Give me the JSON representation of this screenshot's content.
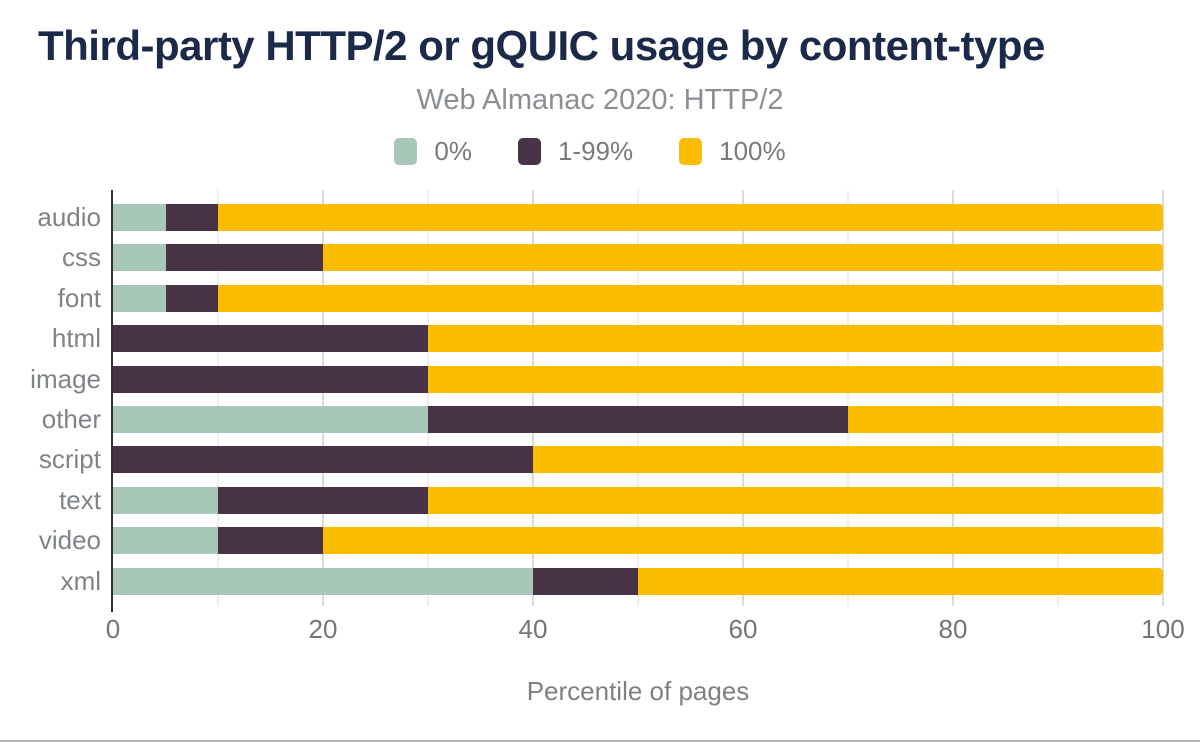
{
  "header": {
    "title": "Third-party HTTP/2 or gQUIC usage by content-type",
    "subtitle": "Web Almanac 2020: HTTP/2"
  },
  "colors": {
    "title_text": "#1b2a49",
    "subtitle_text": "#8a8f94",
    "axis_line": "#362a38",
    "gridline_major": "#dadada",
    "gridline_minor": "#efefef",
    "label_text": "#7a7a7a",
    "series_0pct": "#a7c8b8",
    "series_1_99pct": "#483245",
    "series_100pct": "#fcbd00"
  },
  "legend": {
    "items": [
      {
        "label": "0%",
        "color": "#a7c8b8"
      },
      {
        "label": "1-99%",
        "color": "#483245"
      },
      {
        "label": "100%",
        "color": "#fcbd00"
      }
    ],
    "position": "top"
  },
  "chart_data": {
    "type": "bar",
    "stacked": true,
    "orientation": "horizontal",
    "title": "Third-party HTTP/2 or gQUIC usage by content-type",
    "subtitle": "Web Almanac 2020: HTTP/2",
    "categories": [
      "audio",
      "css",
      "font",
      "html",
      "image",
      "other",
      "script",
      "text",
      "video",
      "xml"
    ],
    "series": [
      {
        "name": "0%",
        "color": "#a7c8b8",
        "values": [
          5,
          5,
          5,
          0,
          0,
          30,
          0,
          10,
          10,
          40
        ]
      },
      {
        "name": "1-99%",
        "color": "#483245",
        "values": [
          5,
          15,
          5,
          30,
          30,
          40,
          40,
          20,
          10,
          10
        ]
      },
      {
        "name": "100%",
        "color": "#fcbd00",
        "values": [
          90,
          80,
          90,
          70,
          70,
          30,
          60,
          70,
          80,
          50
        ]
      }
    ],
    "xlabel": "Percentile of pages",
    "ylabel": "",
    "xlim": [
      0,
      100
    ],
    "xticks": [
      0,
      20,
      40,
      60,
      80,
      100
    ],
    "minor_gridlines_every": 10,
    "grid": true,
    "legend_position": "top"
  }
}
